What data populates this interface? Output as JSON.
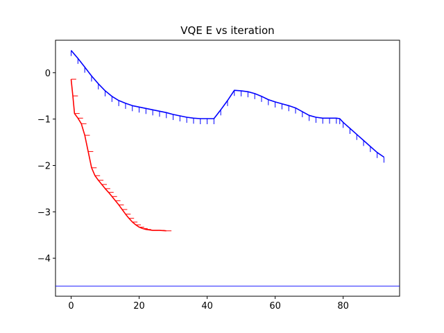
{
  "chart_data": {
    "type": "line",
    "title": "VQE E vs iteration",
    "xlabel": "",
    "ylabel": "",
    "xlim": [
      -4.6,
      96.6
    ],
    "ylim": [
      -4.82,
      0.7
    ],
    "xticks": [
      0,
      20,
      40,
      60,
      80
    ],
    "yticks": [
      0,
      -1,
      -2,
      -3,
      -4
    ],
    "ytick_labels": [
      "0",
      "−1",
      "−2",
      "−3",
      "−4"
    ],
    "grid": false,
    "series": [
      {
        "color": "#0000ff",
        "error_style": "downward ticks",
        "x": [
          0,
          2,
          4,
          6,
          8,
          10,
          12,
          14,
          16,
          18,
          20,
          22,
          24,
          26,
          28,
          30,
          32,
          34,
          36,
          38,
          40,
          42,
          44,
          46,
          48,
          50,
          52,
          54,
          56,
          58,
          60,
          62,
          64,
          66,
          68,
          70,
          72,
          74,
          76,
          78,
          79,
          80,
          82,
          84,
          86,
          88,
          90,
          92
        ],
        "y": [
          0.48,
          0.31,
          0.12,
          -0.07,
          -0.24,
          -0.39,
          -0.51,
          -0.6,
          -0.66,
          -0.71,
          -0.74,
          -0.77,
          -0.8,
          -0.83,
          -0.86,
          -0.9,
          -0.93,
          -0.96,
          -0.98,
          -0.99,
          -0.99,
          -0.99,
          -0.8,
          -0.6,
          -0.38,
          -0.39,
          -0.41,
          -0.45,
          -0.51,
          -0.58,
          -0.63,
          -0.67,
          -0.71,
          -0.76,
          -0.84,
          -0.92,
          -0.96,
          -0.98,
          -0.98,
          -0.98,
          -0.99,
          -1.07,
          -1.2,
          -1.33,
          -1.46,
          -1.59,
          -1.72,
          -1.82
        ],
        "err": 0.12
      },
      {
        "color": "#ff0000",
        "error_style": "sideways ticks",
        "x": [
          0,
          0.5,
          1,
          2,
          3,
          4,
          5,
          6,
          7,
          8,
          9,
          10,
          11,
          12,
          13,
          14,
          15,
          16,
          17,
          18,
          19,
          20,
          21,
          22,
          24,
          26,
          28
        ],
        "y": [
          -0.14,
          -0.5,
          -0.88,
          -0.98,
          -1.1,
          -1.35,
          -1.7,
          -2.05,
          -2.22,
          -2.32,
          -2.41,
          -2.5,
          -2.58,
          -2.67,
          -2.76,
          -2.85,
          -2.95,
          -3.05,
          -3.14,
          -3.22,
          -3.28,
          -3.33,
          -3.36,
          -3.38,
          -3.4,
          -3.4,
          -3.41
        ],
        "err": 1.5
      }
    ],
    "reference_line": {
      "y": -4.6,
      "color": "#0000ff"
    }
  }
}
